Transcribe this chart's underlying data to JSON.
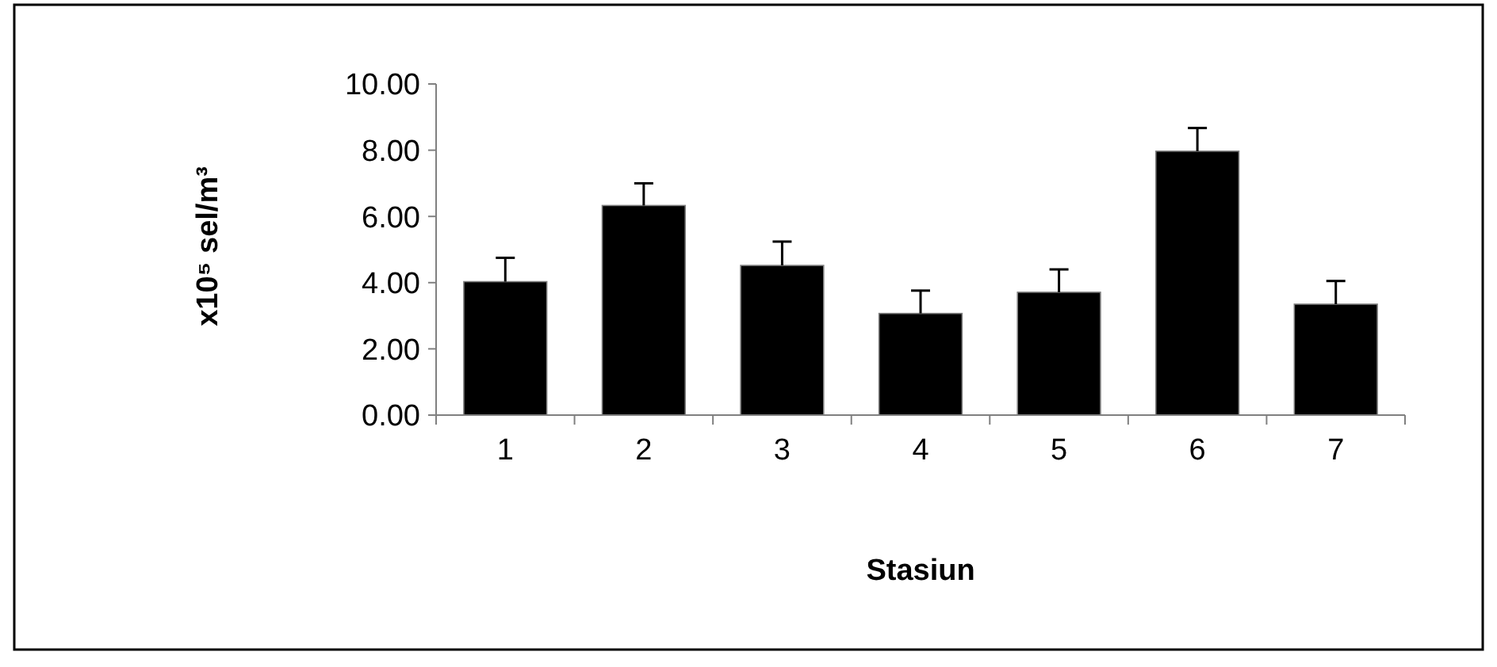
{
  "chart_data": {
    "type": "bar",
    "xlabel": "Stasiun",
    "ylabel": "x10⁵  sel/m³",
    "categories": [
      "1",
      "2",
      "3",
      "4",
      "5",
      "6",
      "7"
    ],
    "values": [
      4.03,
      6.33,
      4.52,
      3.07,
      3.71,
      7.97,
      3.35
    ],
    "errors": [
      [
        4.03,
        4.75
      ],
      [
        6.33,
        7.0
      ],
      [
        4.52,
        5.24
      ],
      [
        3.07,
        3.76
      ],
      [
        3.71,
        4.4
      ],
      [
        7.97,
        8.67
      ],
      [
        3.35,
        4.05
      ]
    ],
    "color": "#000000",
    "ylim": [
      0,
      10
    ],
    "yticks": [
      {
        "value": 0,
        "label": "0.00"
      },
      {
        "value": 2,
        "label": "2.00"
      },
      {
        "value": 4,
        "label": "4.00"
      },
      {
        "value": 6,
        "label": "6.00"
      },
      {
        "value": 8,
        "label": "8.00"
      },
      {
        "value": 10,
        "label": "10.00"
      }
    ],
    "grid": false
  }
}
